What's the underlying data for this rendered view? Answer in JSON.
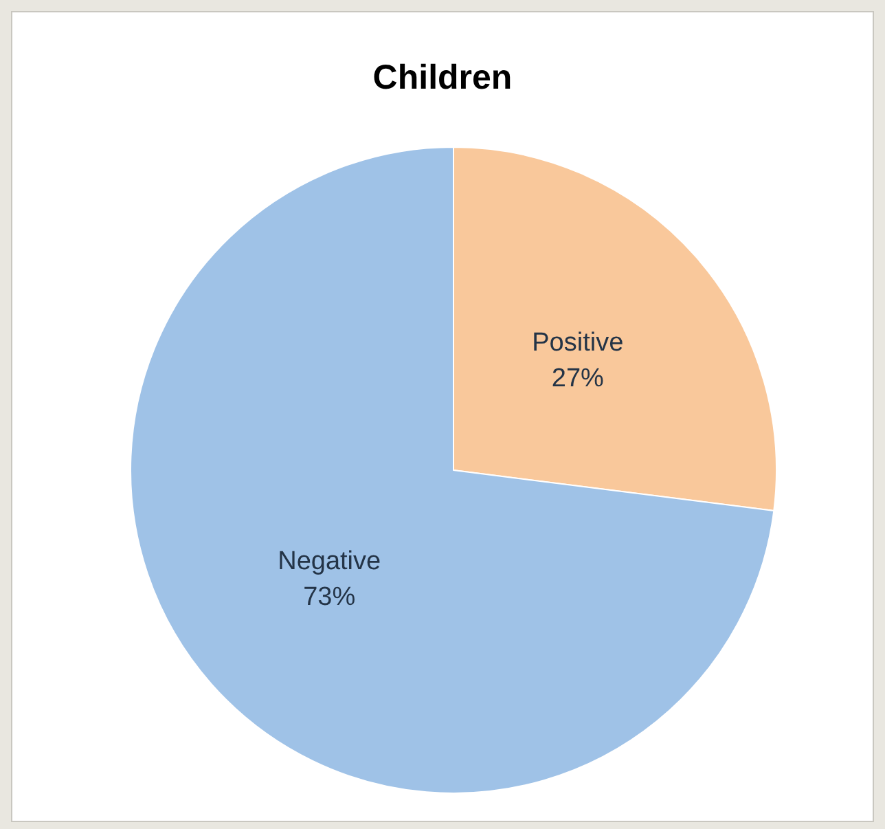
{
  "chart_data": {
    "type": "pie",
    "title": "Children",
    "categories": [
      "Positive",
      "Negative"
    ],
    "values": [
      27,
      73
    ],
    "colors": [
      "#f9c89b",
      "#9fc2e7"
    ],
    "value_labels": [
      "27%",
      "73%"
    ],
    "legend": false
  }
}
